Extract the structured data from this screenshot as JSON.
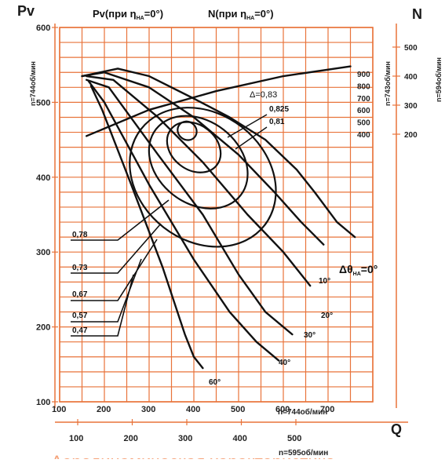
{
  "chart_data": {
    "type": "line",
    "title": "Аэродинамическая характеристика",
    "y_axis_left_label": "Pv",
    "y_axis_right_label": "N",
    "x_axis_label": "Q",
    "y_axis_left_speed_label": "n=744об/мин",
    "y_axis_right_speed_labels": [
      "n=743об/мин",
      "n=594об/мин"
    ],
    "x_axis_speed_labels": [
      "n=744об/мин",
      "n=595об/мин"
    ],
    "curve_labels": {
      "pv": "Pv(при η",
      "pv_sub": "НА",
      "pv_end": "=0°)",
      "n": "N(при η",
      "n_sub": "НА",
      "n_end": "=0°)"
    },
    "x_ticks_744": [
      100,
      200,
      300,
      400,
      500,
      600,
      700
    ],
    "x_ticks_595": [
      100,
      200,
      300,
      400,
      500
    ],
    "y_ticks_left": [
      100,
      200,
      300,
      400,
      500,
      600
    ],
    "n_ticks_743": [
      400,
      500,
      600,
      700,
      800,
      900
    ],
    "n_ticks_594": [
      200,
      300,
      400,
      500
    ],
    "ylim": [
      100,
      600
    ],
    "xlim": [
      100,
      800
    ],
    "efficiency_labels": [
      "Δ=0,83",
      "0,825",
      "0,81",
      "0,78",
      "0,73",
      "0,67",
      "0,57",
      "0,47"
    ],
    "angle_labels": {
      "main": "Δθ",
      "main_sub": "НА",
      "main_end": "=0°",
      "a10": "10°",
      "a20": "20°",
      "a30": "30°",
      "a40": "40°",
      "a60": "60°"
    },
    "series": [
      {
        "name": "Δθ=0°",
        "x": [
          150,
          230,
          300,
          400,
          480,
          560,
          630,
          670,
          720,
          760
        ],
        "y": [
          535,
          545,
          535,
          505,
          480,
          450,
          410,
          380,
          340,
          320
        ]
      },
      {
        "name": "10°",
        "x": [
          150,
          200,
          300,
          400,
          500,
          580,
          640,
          690
        ],
        "y": [
          535,
          540,
          520,
          480,
          430,
          380,
          340,
          310
        ]
      },
      {
        "name": "20°",
        "x": [
          160,
          220,
          320,
          420,
          520,
          600,
          660
        ],
        "y": [
          535,
          530,
          480,
          420,
          350,
          300,
          255
        ]
      },
      {
        "name": "30°",
        "x": [
          160,
          210,
          320,
          420,
          500,
          560,
          620
        ],
        "y": [
          530,
          520,
          430,
          350,
          270,
          220,
          190
        ]
      },
      {
        "name": "40°",
        "x": [
          165,
          200,
          300,
          400,
          480,
          540,
          590
        ],
        "y": [
          528,
          500,
          390,
          290,
          220,
          180,
          155
        ]
      },
      {
        "name": "60°",
        "x": [
          170,
          195,
          260,
          330,
          380,
          400,
          420
        ],
        "y": [
          522,
          490,
          390,
          280,
          190,
          160,
          145
        ]
      },
      {
        "name": "N (при ηНА=0°)",
        "x": [
          160,
          300,
          450,
          600,
          750
        ],
        "y": [
          455,
          490,
          515,
          535,
          548
        ]
      }
    ]
  }
}
